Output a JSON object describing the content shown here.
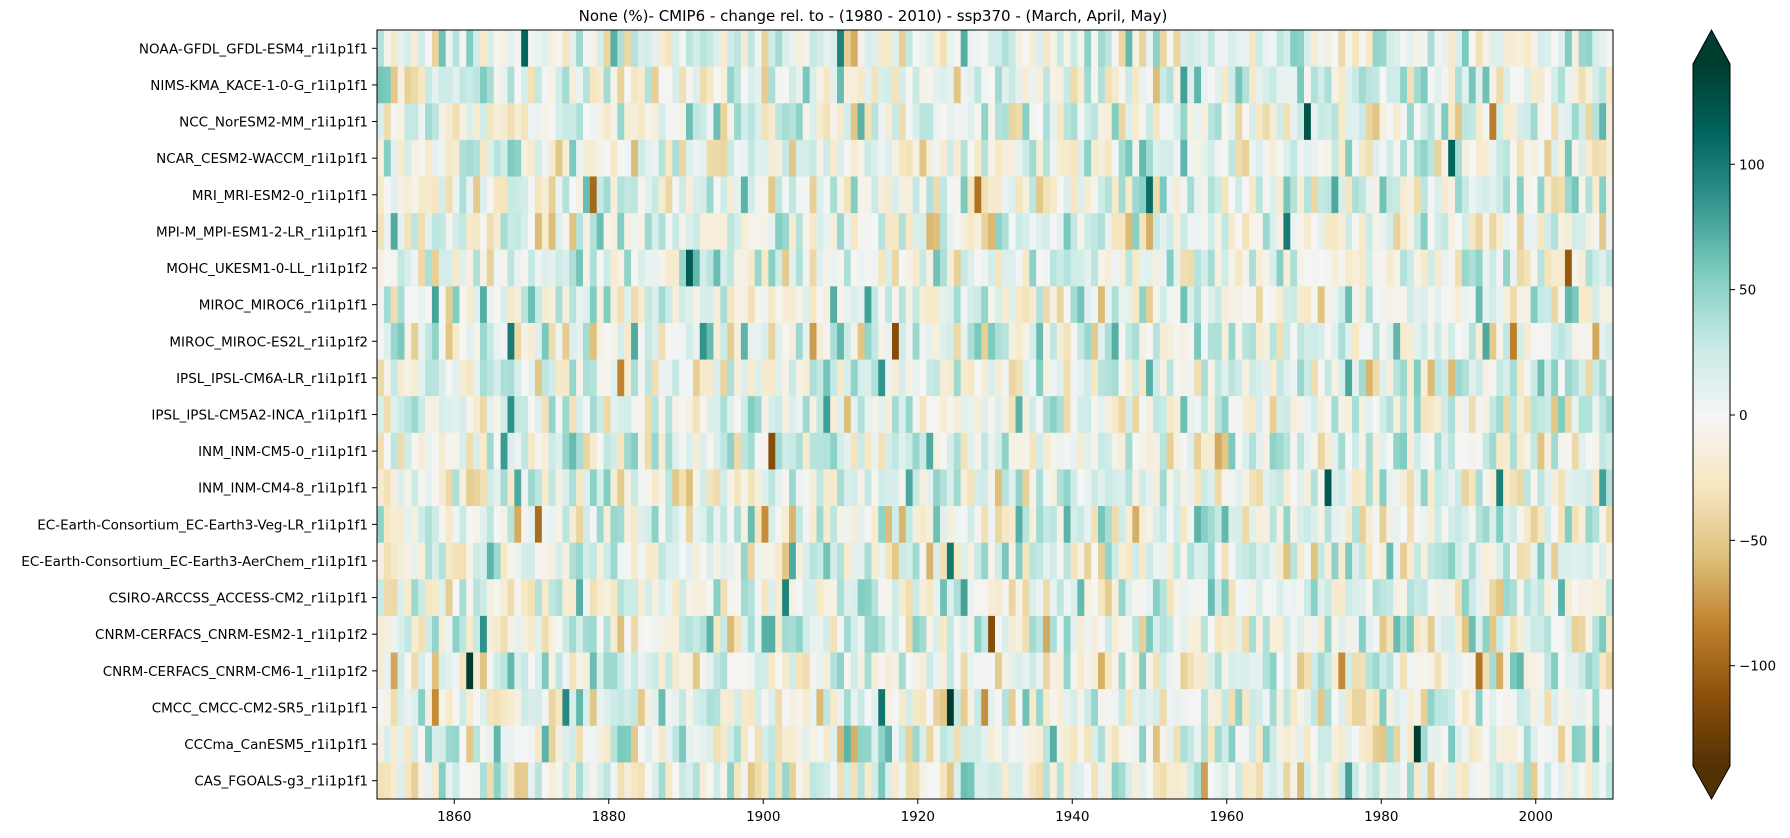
{
  "chart_data": {
    "type": "heatmap",
    "title": "None (%)- CMIP6 - change rel. to - (1980 - 2010) - ssp370  - (March, April, May)",
    "xlabel": "",
    "ylabel": "",
    "x_range": [
      1850,
      2010
    ],
    "x_ticks": [
      1860,
      1880,
      1900,
      1920,
      1940,
      1960,
      1980,
      2000
    ],
    "rows": [
      "NOAA-GFDL_GFDL-ESM4_r1i1p1f1",
      "NIMS-KMA_KACE-1-0-G_r1i1p1f1",
      "NCC_NorESM2-MM_r1i1p1f1",
      "NCAR_CESM2-WACCM_r1i1p1f1",
      "MRI_MRI-ESM2-0_r1i1p1f1",
      "MPI-M_MPI-ESM1-2-LR_r1i1p1f1",
      "MOHC_UKESM1-0-LL_r1i1p1f2",
      "MIROC_MIROC6_r1i1p1f1",
      "MIROC_MIROC-ES2L_r1i1p1f2",
      "IPSL_IPSL-CM6A-LR_r1i1p1f1",
      "IPSL_IPSL-CM5A2-INCA_r1i1p1f1",
      "INM_INM-CM5-0_r1i1p1f1",
      "INM_INM-CM4-8_r1i1p1f1",
      "EC-Earth-Consortium_EC-Earth3-Veg-LR_r1i1p1f1",
      "EC-Earth-Consortium_EC-Earth3-AerChem_r1i1p1f1",
      "CSIRO-ARCCSS_ACCESS-CM2_r1i1p1f1",
      "CNRM-CERFACS_CNRM-ESM2-1_r1i1p1f2",
      "CNRM-CERFACS_CNRM-CM6-1_r1i1p1f2",
      "CMCC_CMCC-CM2-SR5_r1i1p1f1",
      "CCCma_CanESM5_r1i1p1f1",
      "CAS_FGOALS-g3_r1i1p1f1"
    ],
    "colorbar": {
      "colormap": "BrBG",
      "range": [
        -140,
        140
      ],
      "ticks": [
        100,
        50,
        0,
        -50,
        -100
      ],
      "tick_labels": [
        "100",
        "50",
        "0",
        "−50",
        "−100"
      ],
      "extend": "both"
    },
    "colors": {
      "brown_end": "#543005",
      "white_mid": "#f5f5f5",
      "teal_end": "#003c30"
    }
  }
}
